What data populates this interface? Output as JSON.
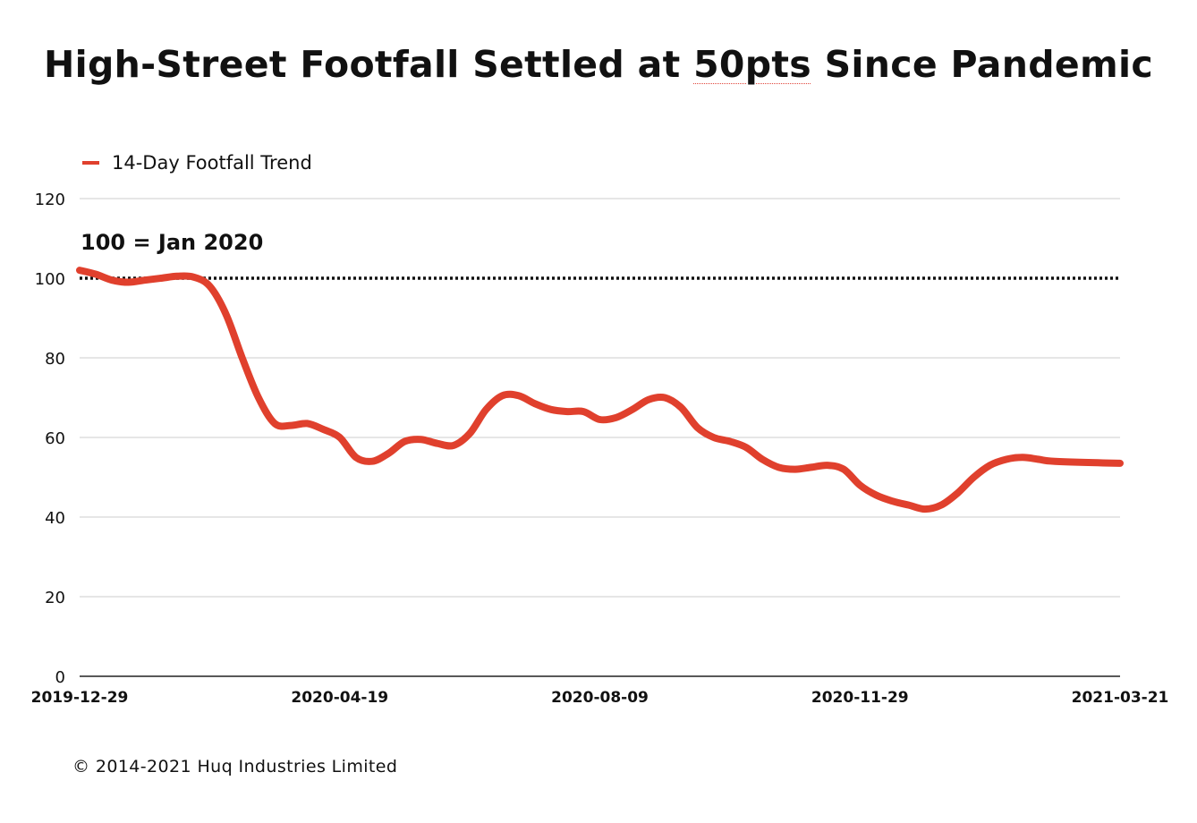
{
  "chart_data": {
    "type": "line",
    "title_prefix": "High-Street Footfall Settled at ",
    "title_underlined": "50pts",
    "title_suffix": " Since Pandemic",
    "xlabel": "",
    "ylabel": "",
    "ylim": [
      0,
      120
    ],
    "yticks": [
      0,
      20,
      40,
      60,
      80,
      100,
      120
    ],
    "xlim": [
      "2019-12-29",
      "2021-03-21"
    ],
    "xticks": [
      "2019-12-29",
      "2020-04-19",
      "2020-08-09",
      "2020-11-29",
      "2021-03-21"
    ],
    "grid": true,
    "legend_position": "top-left",
    "series": [
      {
        "name": "14-Day Footfall Trend",
        "color": "#e0402d",
        "points": [
          [
            "2019-12-29",
            102
          ],
          [
            "2020-01-05",
            101
          ],
          [
            "2020-01-12",
            99.5
          ],
          [
            "2020-01-19",
            99
          ],
          [
            "2020-01-26",
            99.5
          ],
          [
            "2020-02-02",
            100
          ],
          [
            "2020-02-09",
            100.5
          ],
          [
            "2020-02-16",
            100.3
          ],
          [
            "2020-02-23",
            98
          ],
          [
            "2020-03-01",
            91
          ],
          [
            "2020-03-08",
            80
          ],
          [
            "2020-03-15",
            70
          ],
          [
            "2020-03-22",
            63.5
          ],
          [
            "2020-03-29",
            63
          ],
          [
            "2020-04-05",
            63.5
          ],
          [
            "2020-04-12",
            62
          ],
          [
            "2020-04-19",
            60
          ],
          [
            "2020-04-26",
            55
          ],
          [
            "2020-05-03",
            54
          ],
          [
            "2020-05-10",
            56
          ],
          [
            "2020-05-17",
            59
          ],
          [
            "2020-05-24",
            59.5
          ],
          [
            "2020-05-31",
            58.5
          ],
          [
            "2020-06-07",
            58
          ],
          [
            "2020-06-14",
            61
          ],
          [
            "2020-06-21",
            67
          ],
          [
            "2020-06-28",
            70.5
          ],
          [
            "2020-07-05",
            70.5
          ],
          [
            "2020-07-12",
            68.5
          ],
          [
            "2020-07-19",
            67
          ],
          [
            "2020-07-26",
            66.5
          ],
          [
            "2020-08-02",
            66.5
          ],
          [
            "2020-08-09",
            64.5
          ],
          [
            "2020-08-16",
            65
          ],
          [
            "2020-08-23",
            67
          ],
          [
            "2020-08-30",
            69.5
          ],
          [
            "2020-09-06",
            70
          ],
          [
            "2020-09-13",
            67.5
          ],
          [
            "2020-09-20",
            62.5
          ],
          [
            "2020-09-27",
            60
          ],
          [
            "2020-10-04",
            59
          ],
          [
            "2020-10-11",
            57.5
          ],
          [
            "2020-10-18",
            54.5
          ],
          [
            "2020-10-25",
            52.5
          ],
          [
            "2020-11-01",
            52
          ],
          [
            "2020-11-08",
            52.5
          ],
          [
            "2020-11-15",
            53
          ],
          [
            "2020-11-22",
            52
          ],
          [
            "2020-11-29",
            48
          ],
          [
            "2020-12-06",
            45.5
          ],
          [
            "2020-12-13",
            44
          ],
          [
            "2020-12-20",
            43
          ],
          [
            "2020-12-27",
            42
          ],
          [
            "2021-01-03",
            43
          ],
          [
            "2021-01-10",
            46
          ],
          [
            "2021-01-17",
            50
          ],
          [
            "2021-01-24",
            53
          ],
          [
            "2021-01-31",
            54.5
          ],
          [
            "2021-02-07",
            55
          ],
          [
            "2021-02-14",
            54.5
          ],
          [
            "2021-02-21",
            54
          ],
          [
            "2021-03-21",
            53.5
          ]
        ]
      }
    ],
    "reference_line": {
      "y": 100,
      "label": "100 = Jan 2020",
      "style": "dotted",
      "color": "#111111"
    },
    "gridline_color": "#cccccc"
  },
  "copyright": "© 2014-2021 Huq Industries Limited"
}
